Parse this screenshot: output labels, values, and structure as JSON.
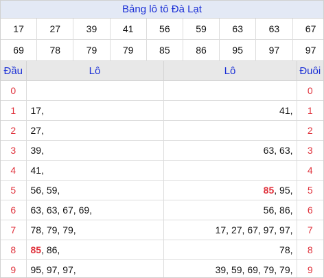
{
  "title": "Bảng lô tô Đà Lạt",
  "numbers_row1": [
    "17",
    "27",
    "39",
    "41",
    "56",
    "59",
    "63",
    "63",
    "67"
  ],
  "numbers_row2": [
    "69",
    "78",
    "79",
    "79",
    "85",
    "86",
    "95",
    "97",
    "97"
  ],
  "headers": {
    "dau": "Đầu",
    "lo_left": "Lô",
    "lo_right": "Lô",
    "duoi": "Đuôi"
  },
  "highlight": "85",
  "rows": [
    {
      "digit": "0",
      "left": "",
      "right": ""
    },
    {
      "digit": "1",
      "left": "17,",
      "right": "41,"
    },
    {
      "digit": "2",
      "left": "27,",
      "right": ""
    },
    {
      "digit": "3",
      "left": "39,",
      "right": "63, 63,"
    },
    {
      "digit": "4",
      "left": "41,",
      "right": ""
    },
    {
      "digit": "5",
      "left": "56, 59,",
      "right": "85, 95,"
    },
    {
      "digit": "6",
      "left": "63, 63, 67, 69,",
      "right": "56, 86,"
    },
    {
      "digit": "7",
      "left": "78, 79, 79,",
      "right": "17, 27, 67, 97, 97,"
    },
    {
      "digit": "8",
      "left": "85, 86,",
      "right": "78,"
    },
    {
      "digit": "9",
      "left": "95, 97, 97,",
      "right": "39, 59, 69, 79, 79,"
    }
  ]
}
